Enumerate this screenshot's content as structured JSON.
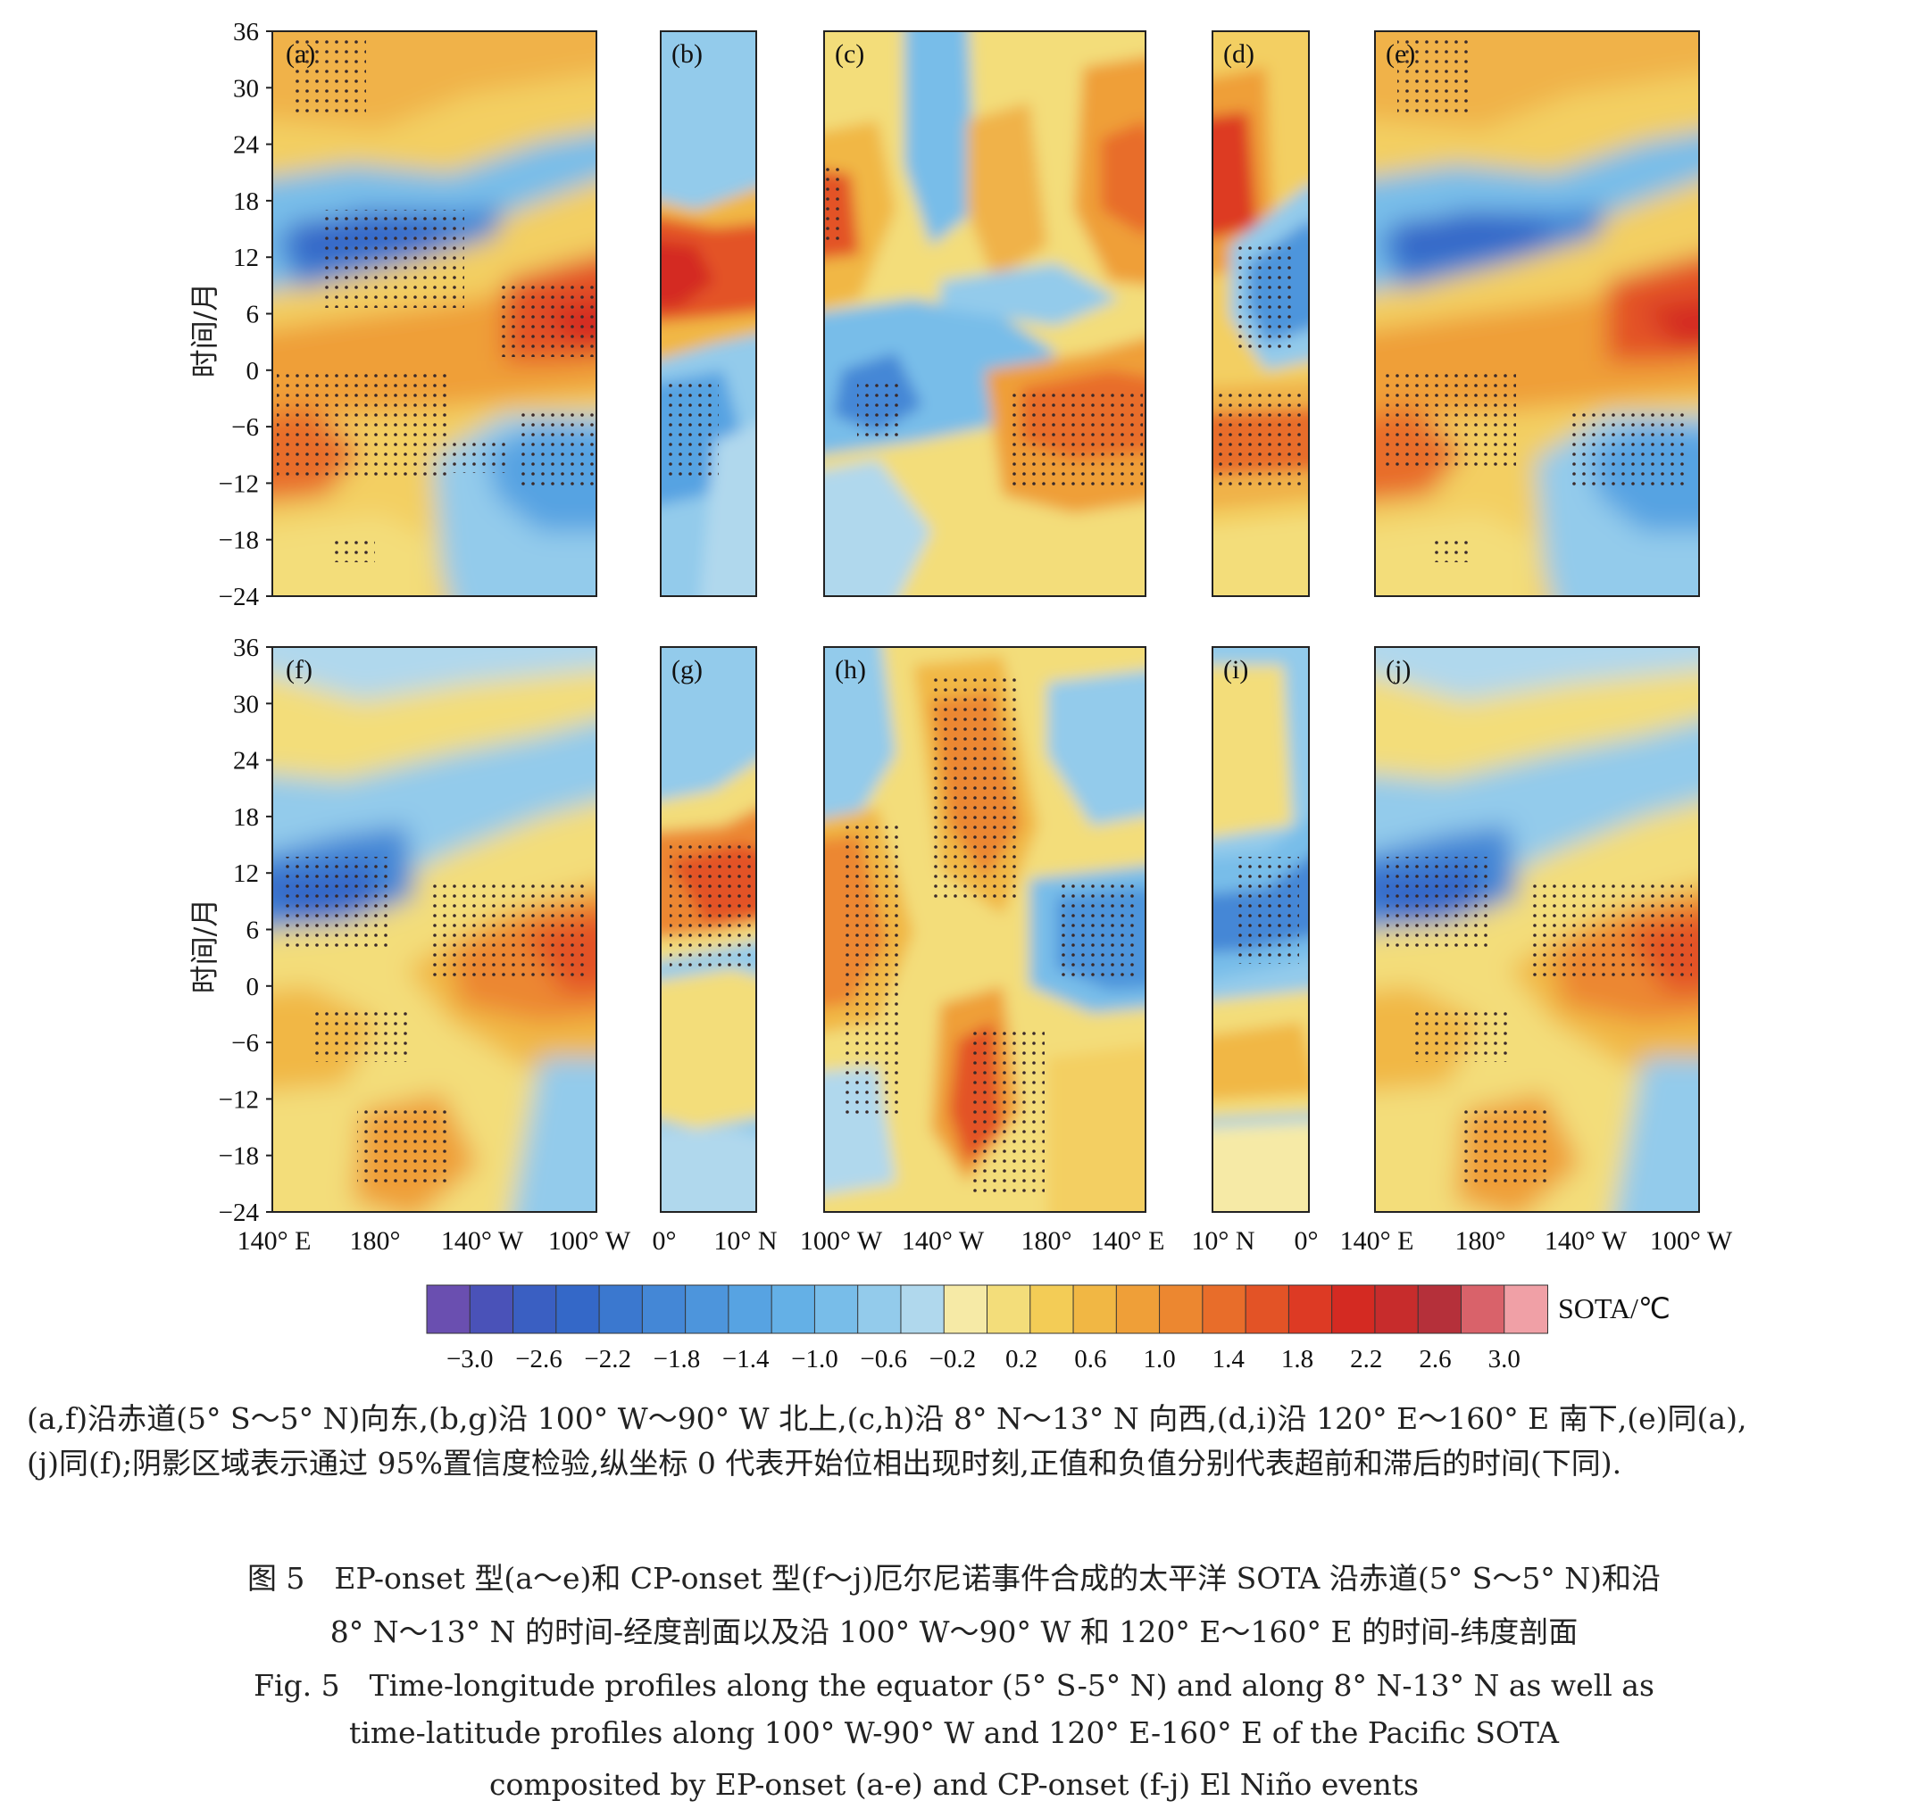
{
  "figure": {
    "ylabel": "时间/月",
    "yticks": [
      36,
      30,
      24,
      18,
      12,
      6,
      0,
      -6,
      -12,
      -18,
      -24
    ],
    "ytick_labels": [
      "36",
      "30",
      "24",
      "18",
      "12",
      "6",
      "0",
      "−6",
      "−12",
      "−18",
      "−24"
    ],
    "panels_top": [
      {
        "id": "a",
        "label": "(a)"
      },
      {
        "id": "b",
        "label": "(b)"
      },
      {
        "id": "c",
        "label": "(c)"
      },
      {
        "id": "d",
        "label": "(d)"
      },
      {
        "id": "e",
        "label": "(e)"
      }
    ],
    "panels_bottom": [
      {
        "id": "f",
        "label": "(f)"
      },
      {
        "id": "g",
        "label": "(g)"
      },
      {
        "id": "h",
        "label": "(h)"
      },
      {
        "id": "i",
        "label": "(i)"
      },
      {
        "id": "j",
        "label": "(j)"
      }
    ],
    "xtick_groups": [
      [
        "140° E",
        "180°",
        "140° W",
        "100° W"
      ],
      [
        "0°",
        "10° N"
      ],
      [
        "100° W",
        "140° W",
        "180°",
        "140° E"
      ],
      [
        "10° N",
        "0°"
      ],
      [
        "140° E",
        "180°",
        "140° W",
        "100° W"
      ]
    ],
    "colorbar": {
      "label": "SOTA/℃",
      "tick_labels": [
        "−3.0",
        "−2.6",
        "−2.2",
        "−1.8",
        "−1.4",
        "−1.0",
        "−0.6",
        "−0.2",
        "0.2",
        "0.6",
        "1.0",
        "1.4",
        "1.8",
        "2.2",
        "2.6",
        "3.0"
      ],
      "colors": [
        "#6a4fb0",
        "#4a52b8",
        "#3a5fc2",
        "#3468c8",
        "#3b78cf",
        "#4487d6",
        "#4d95dc",
        "#57a3e2",
        "#64b0e6",
        "#78bde9",
        "#93cbeb",
        "#b0d8ed",
        "#f6eaa6",
        "#f3dd7a",
        "#f3cc56",
        "#f1b744",
        "#ef9f38",
        "#ec8730",
        "#e86d2a",
        "#e35326",
        "#dd3a24",
        "#d42a22",
        "#c72c2c",
        "#b5303a",
        "#d9626a",
        "#f0a0a6"
      ]
    }
  },
  "note": {
    "line1": "(a,f)沿赤道(5° S～5° N)向东,(b,g)沿 100° W～90° W 北上,(c,h)沿 8° N～13° N 向西,(d,i)沿 120° E～160° E 南下,(e)同(a),",
    "line2": "(j)同(f);阴影区域表示通过 95%置信度检验,纵坐标 0 代表开始位相出现时刻,正值和负值分别代表超前和滞后的时间(下同)."
  },
  "caption": {
    "cn_line1": "图 5　EP-onset 型(a～e)和 CP-onset 型(f～j)厄尔尼诺事件合成的太平洋 SOTA 沿赤道(5° S～5° N)和沿",
    "cn_line2": "8° N～13° N 的时间-经度剖面以及沿 100° W～90° W 和 120° E～160° E 的时间-纬度剖面",
    "en_line1": "Fig. 5　Time-longitude profiles along the equator (5° S-5° N) and along 8° N-13° N as well as",
    "en_line2": "time-latitude profiles along 100° W-90° W and 120° E-160° E of the Pacific SOTA",
    "en_line3": "composited by EP-onset (a-e) and CP-onset (f-j) El Niño events"
  }
}
